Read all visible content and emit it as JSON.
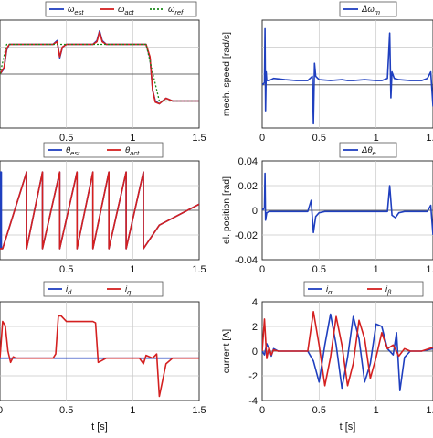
{
  "chart_data": [
    {
      "id": "speed",
      "type": "line",
      "xlim": [
        0,
        1.5
      ],
      "ylim": [
        -1,
        1
      ],
      "xticks": [
        "0.5",
        "1",
        "1.5"
      ],
      "yticks": [],
      "ylabel": "",
      "xlabel": "",
      "legend": [
        "ω_est",
        "ω_act",
        "ω_ref"
      ],
      "series": [
        {
          "name": "ω_est",
          "color": "#1f3fbf",
          "x": [
            0,
            0.03,
            0.05,
            0.07,
            0.1,
            0.4,
            0.43,
            0.45,
            0.47,
            0.5,
            0.7,
            0.73,
            0.75,
            0.77,
            0.8,
            1.1,
            1.13,
            1.15,
            1.17,
            1.2,
            1.25,
            1.3,
            1.5
          ],
          "y": [
            0,
            0.1,
            0.45,
            0.55,
            0.55,
            0.55,
            0.62,
            0.3,
            0.5,
            0.55,
            0.55,
            0.62,
            0.8,
            0.62,
            0.55,
            0.55,
            0.3,
            -0.3,
            -0.5,
            -0.55,
            -0.45,
            -0.5,
            -0.5
          ]
        },
        {
          "name": "ω_act",
          "color": "#d42020",
          "x": [
            0,
            0.03,
            0.05,
            0.07,
            0.1,
            0.4,
            0.43,
            0.45,
            0.47,
            0.5,
            0.7,
            0.73,
            0.75,
            0.77,
            0.8,
            1.1,
            1.13,
            1.15,
            1.17,
            1.2,
            1.25,
            1.3,
            1.5
          ],
          "y": [
            0,
            0.12,
            0.47,
            0.55,
            0.55,
            0.55,
            0.6,
            0.32,
            0.5,
            0.55,
            0.55,
            0.6,
            0.78,
            0.6,
            0.55,
            0.55,
            0.32,
            -0.3,
            -0.52,
            -0.55,
            -0.45,
            -0.5,
            -0.5
          ]
        },
        {
          "name": "ω_ref",
          "color": "#1a8a1a",
          "dashed": true,
          "x": [
            0,
            0.05,
            0.1,
            0.4,
            0.5,
            0.7,
            0.8,
            1.1,
            1.2,
            1.3,
            1.5
          ],
          "y": [
            0,
            0.55,
            0.55,
            0.55,
            0.55,
            0.55,
            0.55,
            0.55,
            -0.5,
            -0.5,
            -0.5
          ]
        }
      ]
    },
    {
      "id": "dspeed",
      "type": "line",
      "xlim": [
        0,
        1.5
      ],
      "ylim": [
        -1.0,
        1.5
      ],
      "xticks": [
        "0",
        "0.5",
        "1",
        "1.5"
      ],
      "yticks": [],
      "ylabel": "mech. speed [rad/s]",
      "xlabel": "",
      "legend": [
        "Δω_m"
      ],
      "series": [
        {
          "name": "Δω_m",
          "color": "#1f3fbf",
          "x": [
            0,
            0.02,
            0.025,
            0.03,
            0.035,
            0.04,
            0.06,
            0.1,
            0.2,
            0.3,
            0.4,
            0.44,
            0.45,
            0.46,
            0.47,
            0.5,
            0.6,
            0.7,
            0.75,
            0.8,
            0.9,
            1.0,
            1.05,
            1.1,
            1.12,
            1.13,
            1.14,
            1.16,
            1.2,
            1.3,
            1.4,
            1.45,
            1.48,
            1.5
          ],
          "y": [
            0,
            0.05,
            1.3,
            -0.6,
            0.3,
            0.1,
            0.1,
            0.15,
            0.12,
            0.1,
            0.1,
            0.2,
            -0.9,
            0.5,
            0.2,
            0.12,
            0.1,
            0.12,
            0.1,
            0.1,
            0.12,
            0.1,
            0.1,
            0.15,
            1.2,
            -0.3,
            0.3,
            0.15,
            0.12,
            0.1,
            0.1,
            0.15,
            0.3,
            -0.5
          ]
        }
      ]
    },
    {
      "id": "angle",
      "type": "line",
      "xlim": [
        0,
        1.5
      ],
      "ylim": [
        -4,
        4
      ],
      "xticks": [
        "0.5",
        "1",
        "1.5"
      ],
      "yticks": [],
      "ylabel": "",
      "xlabel": "",
      "legend": [
        "θ_est",
        "θ_act"
      ],
      "series": [
        {
          "name": "θ_est",
          "color": "#1f3fbf",
          "x": [
            0,
            0.005,
            0.005,
            0.01,
            0.01,
            0.02,
            0.2,
            0.2,
            0.32,
            0.32,
            0.45,
            0.45,
            0.58,
            0.58,
            0.7,
            0.7,
            0.82,
            0.82,
            0.95,
            0.95,
            1.08,
            1.08,
            1.2,
            1.5
          ],
          "y": [
            -3.1,
            3.1,
            -3.1,
            3.1,
            -3.1,
            -3.1,
            3.1,
            -3.1,
            3.1,
            -3.1,
            3.1,
            -3.1,
            3.1,
            -3.1,
            3.1,
            -3.1,
            3.1,
            -3.1,
            3.1,
            -3.1,
            3.1,
            -3.1,
            -1.2,
            0.5
          ]
        },
        {
          "name": "θ_act",
          "color": "#d42020",
          "x": [
            0,
            0.02,
            0.2,
            0.2,
            0.32,
            0.32,
            0.45,
            0.45,
            0.58,
            0.58,
            0.7,
            0.7,
            0.82,
            0.82,
            0.95,
            0.95,
            1.08,
            1.08,
            1.2,
            1.5
          ],
          "y": [
            -3.1,
            -3.1,
            3.1,
            -3.1,
            3.1,
            -3.1,
            3.1,
            -3.1,
            3.1,
            -3.1,
            3.1,
            -3.1,
            3.1,
            -3.1,
            3.1,
            -3.1,
            3.1,
            -3.1,
            -1.2,
            0.5
          ]
        }
      ]
    },
    {
      "id": "dangle",
      "type": "line",
      "xlim": [
        0,
        1.5
      ],
      "ylim": [
        -0.04,
        0.04
      ],
      "xticks": [
        "0",
        "0.5",
        "1",
        "1.5"
      ],
      "yticks": [
        "0.04",
        "0.02",
        "0",
        "-0.02",
        "-0.04"
      ],
      "ylabel": "el. position [rad]",
      "xlabel": "",
      "legend": [
        "Δθ_e"
      ],
      "series": [
        {
          "name": "Δθ_e",
          "color": "#1f3fbf",
          "x": [
            0,
            0.02,
            0.025,
            0.03,
            0.04,
            0.06,
            0.1,
            0.2,
            0.4,
            0.43,
            0.45,
            0.47,
            0.5,
            0.55,
            0.7,
            0.75,
            0.8,
            0.9,
            1.0,
            1.1,
            1.12,
            1.14,
            1.17,
            1.2,
            1.25,
            1.3,
            1.45,
            1.48,
            1.5
          ],
          "y": [
            0,
            0.002,
            0.03,
            -0.008,
            -0.002,
            -0.001,
            -0.001,
            -0.001,
            -0.001,
            0.008,
            -0.018,
            -0.005,
            -0.002,
            -0.001,
            -0.001,
            -0.001,
            -0.001,
            -0.001,
            -0.001,
            -0.001,
            0.02,
            -0.004,
            -0.006,
            -0.002,
            -0.001,
            -0.001,
            -0.001,
            0.004,
            -0.02
          ]
        }
      ]
    },
    {
      "id": "dq",
      "type": "line",
      "xlim": [
        0,
        1.5
      ],
      "ylim": [
        -3,
        4
      ],
      "xticks": [
        "0",
        "0.5",
        "1",
        "1.5"
      ],
      "yticks": [],
      "ylabel": "",
      "xlabel": "t [s]",
      "legend": [
        "i_d",
        "i_q"
      ],
      "series": [
        {
          "name": "i_d",
          "color": "#1f3fbf",
          "x": [
            0,
            1.5
          ],
          "y": [
            0,
            0
          ]
        },
        {
          "name": "i_q",
          "color": "#d42020",
          "x": [
            0,
            0.02,
            0.04,
            0.06,
            0.08,
            0.1,
            0.12,
            0.4,
            0.42,
            0.44,
            0.46,
            0.5,
            0.7,
            0.72,
            0.74,
            0.76,
            0.8,
            1.05,
            1.08,
            1.1,
            1.15,
            1.18,
            1.2,
            1.22,
            1.25,
            1.3,
            1.5
          ],
          "y": [
            0,
            2.6,
            2.3,
            0.5,
            -0.3,
            0.1,
            0,
            0,
            0.3,
            3.0,
            3.0,
            2.6,
            2.6,
            2.5,
            -0.3,
            -0.2,
            0,
            0,
            -0.4,
            0.2,
            0,
            0.3,
            -2.7,
            -1.8,
            -0.4,
            0,
            0
          ]
        }
      ]
    },
    {
      "id": "ab",
      "type": "line",
      "xlim": [
        0,
        1.5
      ],
      "ylim": [
        -4,
        4
      ],
      "xticks": [
        "0",
        "0.5",
        "1",
        "1.5"
      ],
      "yticks": [
        "4",
        "2",
        "0",
        "-2",
        "-4"
      ],
      "ylabel": "current [A]",
      "xlabel": "t [s]",
      "legend": [
        "i_α",
        "i_β"
      ],
      "series": [
        {
          "name": "i_α",
          "color": "#1f3fbf",
          "x": [
            0,
            0.02,
            0.04,
            0.06,
            0.08,
            0.1,
            0.14,
            0.4,
            0.45,
            0.5,
            0.55,
            0.6,
            0.65,
            0.7,
            0.75,
            0.8,
            0.85,
            0.9,
            0.95,
            1.0,
            1.05,
            1.1,
            1.15,
            1.18,
            1.21,
            1.25,
            1.3,
            1.4,
            1.5
          ],
          "y": [
            0,
            -0.3,
            0.6,
            0.2,
            -0.4,
            0.2,
            0,
            0,
            -0.8,
            -2.5,
            0.5,
            3.0,
            0.5,
            -3.0,
            -0.5,
            2.8,
            1.0,
            -2.5,
            -1.0,
            2.2,
            2.0,
            0.2,
            -0.3,
            1.5,
            -3.2,
            -0.5,
            0,
            0,
            0.2
          ]
        },
        {
          "name": "i_β",
          "color": "#d42020",
          "x": [
            0,
            0.02,
            0.04,
            0.06,
            0.08,
            0.1,
            0.14,
            0.4,
            0.45,
            0.5,
            0.55,
            0.6,
            0.65,
            0.7,
            0.75,
            0.8,
            0.85,
            0.9,
            0.95,
            1.0,
            1.05,
            1.1,
            1.15,
            1.2,
            1.25,
            1.3,
            1.4,
            1.5
          ],
          "y": [
            0,
            2.6,
            -0.6,
            0.3,
            -0.3,
            0.1,
            0,
            0,
            3.2,
            0.5,
            -2.8,
            -0.5,
            2.8,
            0.5,
            -2.8,
            -1.0,
            2.5,
            1.0,
            -2.2,
            -0.5,
            1.5,
            0.2,
            0.5,
            -0.4,
            0.2,
            0,
            0,
            0.3
          ]
        }
      ]
    }
  ]
}
